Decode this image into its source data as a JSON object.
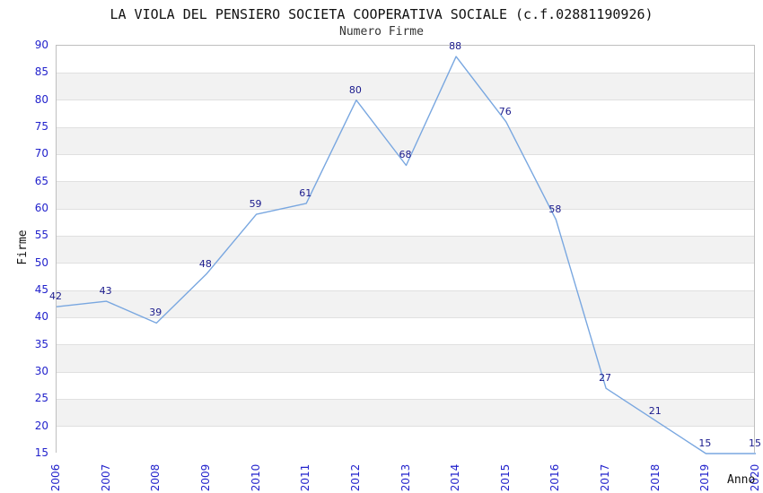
{
  "title": "LA VIOLA DEL PENSIERO SOCIETA COOPERATIVA SOCIALE (c.f.02881190926)",
  "subtitle": "Numero Firme",
  "chart_data": {
    "type": "line",
    "title": "LA VIOLA DEL PENSIERO SOCIETA COOPERATIVA SOCIALE (c.f.02881190926)",
    "subtitle": "Numero Firme",
    "xlabel": "Anno",
    "ylabel": "Firme",
    "categories": [
      "2006",
      "2007",
      "2008",
      "2009",
      "2010",
      "2011",
      "2012",
      "2013",
      "2014",
      "2015",
      "2016",
      "2017",
      "2018",
      "2019",
      "2020"
    ],
    "series": [
      {
        "name": "Numero Firme",
        "values": [
          42,
          43,
          39,
          48,
          59,
          61,
          80,
          68,
          88,
          76,
          58,
          27,
          21,
          15,
          15
        ]
      }
    ],
    "ylim": [
      15,
      90
    ],
    "ytick_step": 5,
    "grid": "horizontal-only",
    "legend": "none",
    "show_point_labels": true
  },
  "colors": {
    "line": "#79a7e0",
    "tick_label": "#2222cc",
    "data_label": "#1a1a8c",
    "band_gray": "#f2f2f2",
    "gridline": "#e0e0e0",
    "plot_border": "#bfbfbf",
    "title": "#111111",
    "subtitle": "#333333"
  }
}
